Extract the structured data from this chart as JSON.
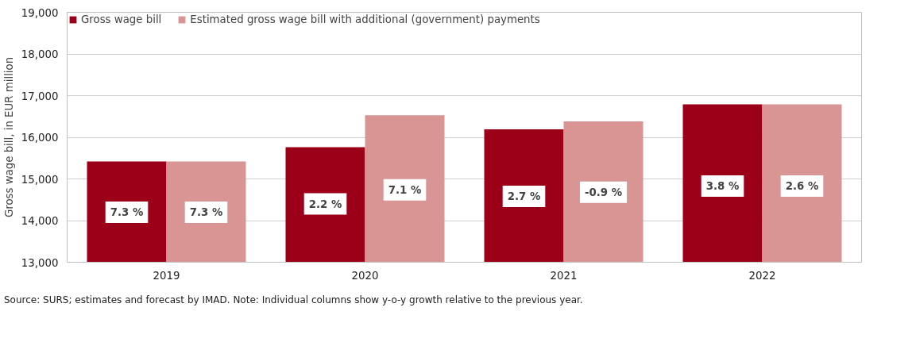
{
  "chart_data": {
    "type": "bar",
    "categories": [
      "2019",
      "2020",
      "2021",
      "2022"
    ],
    "ylabel": "Gross wage bill, in EUR million",
    "series": [
      {
        "name": "Gross wage bill",
        "color": "#9c0019",
        "values": [
          15420,
          15760,
          16190,
          16790
        ]
      },
      {
        "name": "Estimated gross wage bill with additional (government) payments",
        "color": "#d99594",
        "values": [
          15420,
          16530,
          16380,
          16790
        ]
      }
    ],
    "ylim": [
      13000,
      19000
    ],
    "yticks": [
      {
        "value": 13000,
        "label": "13,000"
      },
      {
        "value": 14000,
        "label": "14,000"
      },
      {
        "value": 15000,
        "label": "15,000"
      },
      {
        "value": 16000,
        "label": "16,000"
      },
      {
        "value": 17000,
        "label": "17,000"
      },
      {
        "value": 18000,
        "label": "18,000"
      },
      {
        "value": 19000,
        "label": "19,000"
      }
    ],
    "grid": "y",
    "legend": "top left",
    "annotations": [
      {
        "text": "7.3 %",
        "x": "2019",
        "y": 14200
      },
      {
        "text": "2.2 %",
        "x": "2020",
        "y": 14400
      },
      {
        "text": "2.7 %",
        "x": "2021",
        "y": 14580
      },
      {
        "text": "3.8 %",
        "x": "2022",
        "y": 14830
      },
      {
        "text": "7.3 %",
        "x": "2019",
        "y": 14200
      },
      {
        "text": "7.1 %",
        "x": "2020",
        "y": 14740
      },
      {
        "text": "-0.9 %",
        "x": "2021",
        "y": 14680
      },
      {
        "text": "2.6 %",
        "x": "2022",
        "y": 14830
      },
      "Source: SURS; estimates and forecast by IMAD. Note: Individual columns show y-o-y growth relative to the previous year."
    ]
  }
}
